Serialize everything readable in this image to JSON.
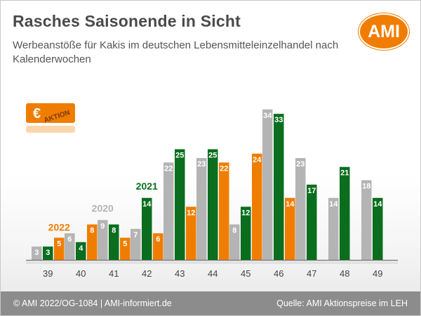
{
  "header": {
    "title": "Rasches Saisonende in Sicht",
    "subtitle": "Werbeanstöße für Kakis im deutschen Lebensmitteleinzelhandel nach Kalenderwochen"
  },
  "logo": {
    "text": "AMI"
  },
  "badge": {
    "euro": "€",
    "text": "AKTION"
  },
  "footer": {
    "left": "© AMI 2022/OG-1084 | AMI-informiert.de",
    "right": "Quelle: AMI Aktionspreise im LEH"
  },
  "colors": {
    "2020": "#b4b4b4",
    "2021": "#0a6e1e",
    "2022": "#f07d00",
    "accent": "#f07d00"
  },
  "chart_data": {
    "type": "bar",
    "title": "Rasches Saisonende in Sicht",
    "categories": [
      "39",
      "40",
      "41",
      "42",
      "43",
      "44",
      "45",
      "46",
      "47",
      "48",
      "49"
    ],
    "series": [
      {
        "name": "2020",
        "values": [
          3,
          6,
          9,
          7,
          22,
          23,
          8,
          34,
          23,
          14,
          18
        ]
      },
      {
        "name": "2021",
        "values": [
          3,
          4,
          8,
          14,
          25,
          25,
          12,
          33,
          17,
          21,
          14
        ]
      },
      {
        "name": "2022",
        "values": [
          5,
          8,
          5,
          6,
          12,
          22,
          24,
          14,
          null,
          null,
          null
        ]
      }
    ],
    "ylim": [
      0,
      36
    ],
    "grid": false,
    "legend": "inline labels above week 39-42 bars"
  }
}
